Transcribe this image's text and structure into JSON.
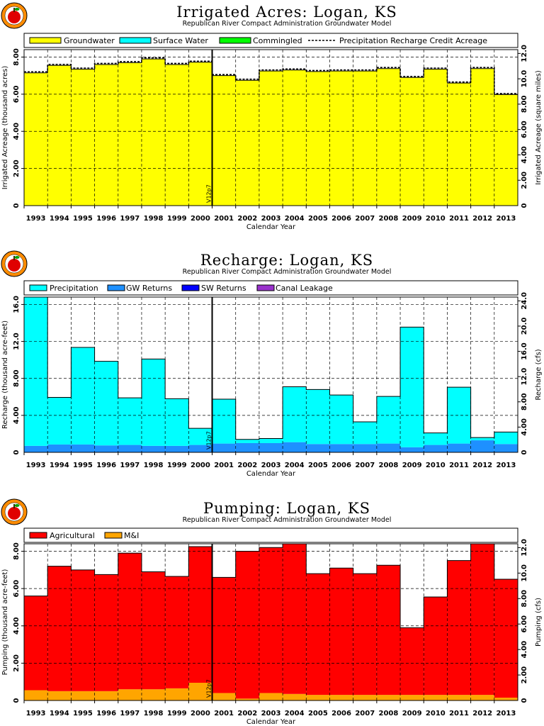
{
  "colors": {
    "groundwater": "#ffff00",
    "surface_water": "#00ffff",
    "commingled": "#00ff00",
    "precipitation": "#00ffff",
    "gw_returns": "#1e90ff",
    "sw_returns": "#0000ff",
    "canal_leakage": "#9932cc",
    "agricultural": "#ff0000",
    "mi": "#ffa500",
    "logo_ring": "#ff8c00",
    "logo_apple": "#e00000"
  },
  "chart_data": [
    {
      "type": "area",
      "title": "Irrigated Acres: Logan, KS",
      "subtitle": "Republican River Compact Administration Groundwater Model",
      "xlabel": "Calendar Year",
      "ylabel": "Irrigated Acreage (thousand acres)",
      "y2label": "Irrigated Acreage (square miles)",
      "ylim": [
        0,
        8.4
      ],
      "y2lim": [
        0,
        13.125
      ],
      "yticks": [
        "2.00",
        "4.00",
        "6.00",
        "8.00"
      ],
      "y2ticks": [
        "2.00",
        "4.00",
        "6.00",
        "8.00",
        "10.0",
        "12.0"
      ],
      "categories": [
        "1993",
        "1994",
        "1995",
        "1996",
        "1997",
        "1998",
        "1999",
        "2000",
        "2001",
        "2002",
        "2003",
        "2004",
        "2005",
        "2006",
        "2007",
        "2008",
        "2009",
        "2010",
        "2011",
        "2012",
        "2013"
      ],
      "series": [
        {
          "name": "Groundwater",
          "values": [
            7.15,
            7.55,
            7.35,
            7.6,
            7.7,
            7.9,
            7.6,
            7.72,
            7.0,
            6.75,
            7.25,
            7.3,
            7.22,
            7.25,
            7.25,
            7.38,
            6.9,
            7.35,
            6.6,
            7.38,
            5.98
          ]
        },
        {
          "name": "Surface Water",
          "values": [
            0,
            0,
            0,
            0,
            0,
            0,
            0,
            0,
            0,
            0,
            0,
            0,
            0,
            0,
            0,
            0,
            0,
            0,
            0,
            0,
            0
          ]
        },
        {
          "name": "Commingled",
          "values": [
            0,
            0,
            0,
            0,
            0,
            0,
            0,
            0,
            0,
            0,
            0,
            0,
            0,
            0,
            0,
            0,
            0,
            0,
            0,
            0,
            0
          ]
        }
      ],
      "line_series": {
        "name": "Precipitation Recharge Credit Acreage",
        "values": [
          7.15,
          7.55,
          7.35,
          7.6,
          7.7,
          7.9,
          7.6,
          7.72,
          7.0,
          6.75,
          7.25,
          7.3,
          7.22,
          7.25,
          7.25,
          7.38,
          6.9,
          7.35,
          6.6,
          7.38,
          5.98
        ]
      },
      "version_label": "V12p7",
      "grid": true,
      "legend": "top"
    },
    {
      "type": "area",
      "title": "Recharge: Logan, KS",
      "subtitle": "Republican River Compact Administration Groundwater Model",
      "xlabel": "Calendar Year",
      "ylabel": "Recharge (thousand acre-feet)",
      "y2label": "Recharge (cfs)",
      "ylim": [
        0,
        16.8
      ],
      "y2lim": [
        0,
        23.2
      ],
      "yticks": [
        "4.00",
        "8.00",
        "12.0",
        "16.0"
      ],
      "y2ticks": [
        "4.00",
        "8.00",
        "12.0",
        "16.0",
        "20.0",
        "24.0"
      ],
      "categories": [
        "1993",
        "1994",
        "1995",
        "1996",
        "1997",
        "1998",
        "1999",
        "2000",
        "2001",
        "2002",
        "2003",
        "2004",
        "2005",
        "2006",
        "2007",
        "2008",
        "2009",
        "2010",
        "2011",
        "2012",
        "2013"
      ],
      "series": [
        {
          "name": "Precipitation",
          "values": [
            16.1,
            5.1,
            10.5,
            9.1,
            5.1,
            9.4,
            5.1,
            1.8,
            4.8,
            0.4,
            0.5,
            6.0,
            5.9,
            5.3,
            2.4,
            5.1,
            13.0,
            1.3,
            6.1,
            0.3,
            1.3
          ]
        },
        {
          "name": "GW Returns",
          "values": [
            0.7,
            0.85,
            0.85,
            0.75,
            0.8,
            0.7,
            0.7,
            0.8,
            0.95,
            1.0,
            1.0,
            1.1,
            0.9,
            0.9,
            0.9,
            0.95,
            0.55,
            0.8,
            0.95,
            1.3,
            0.9
          ]
        },
        {
          "name": "SW Returns",
          "values": [
            0,
            0,
            0,
            0,
            0,
            0,
            0,
            0,
            0,
            0,
            0,
            0,
            0,
            0,
            0,
            0,
            0,
            0,
            0,
            0,
            0
          ]
        },
        {
          "name": "Canal Leakage",
          "values": [
            0,
            0,
            0,
            0,
            0,
            0,
            0,
            0,
            0,
            0,
            0,
            0,
            0,
            0,
            0,
            0,
            0,
            0,
            0,
            0,
            0
          ]
        }
      ],
      "version_label": "V12p7",
      "grid": true,
      "legend": "top"
    },
    {
      "type": "area",
      "title": "Pumping: Logan, KS",
      "subtitle": "Republican River Compact Administration Groundwater Model",
      "xlabel": "Calendar Year",
      "ylabel": "Pumping (thousand acre-feet)",
      "y2label": "Pumping (cfs)",
      "ylim": [
        0,
        8.4
      ],
      "y2lim": [
        0,
        11.6
      ],
      "yticks": [
        "2.00",
        "4.00",
        "6.00",
        "8.00"
      ],
      "y2ticks": [
        "2.00",
        "4.00",
        "6.00",
        "8.00",
        "10.0",
        "12.0"
      ],
      "categories": [
        "1993",
        "1994",
        "1995",
        "1996",
        "1997",
        "1998",
        "1999",
        "2000",
        "2001",
        "2002",
        "2003",
        "2004",
        "2005",
        "2006",
        "2007",
        "2008",
        "2009",
        "2010",
        "2011",
        "2012",
        "2013"
      ],
      "series": [
        {
          "name": "Agricultural",
          "values": [
            5.05,
            6.7,
            6.5,
            6.25,
            7.3,
            6.3,
            6.0,
            7.3,
            6.2,
            7.9,
            7.8,
            8.05,
            6.5,
            6.8,
            6.5,
            6.95,
            3.6,
            5.25,
            7.2,
            8.1,
            6.35
          ]
        },
        {
          "name": "M&I",
          "values": [
            0.55,
            0.5,
            0.5,
            0.5,
            0.6,
            0.6,
            0.65,
            0.95,
            0.4,
            0.1,
            0.4,
            0.35,
            0.3,
            0.3,
            0.3,
            0.3,
            0.3,
            0.3,
            0.3,
            0.3,
            0.15
          ]
        }
      ],
      "version_label": "V12p7",
      "grid": true,
      "legend": "top"
    }
  ]
}
